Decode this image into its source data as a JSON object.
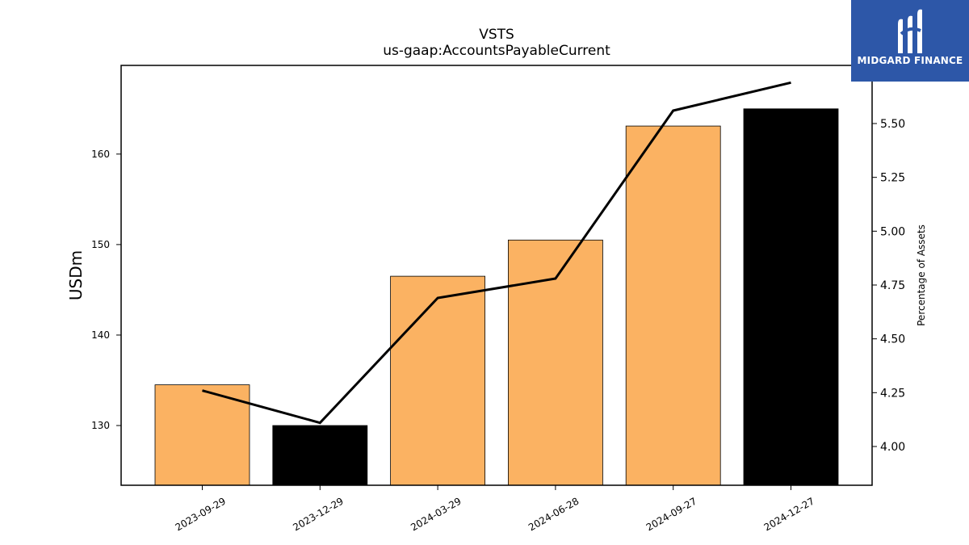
{
  "chart_data": {
    "type": "bar",
    "title": "VSTS",
    "subtitle": "us-gaap:AccountsPayableCurrent",
    "ylabel": "USDm",
    "y2label": "Percentage of Assets",
    "categories": [
      "2023-09-29",
      "2023-12-29",
      "2024-03-29",
      "2024-06-28",
      "2024-09-27",
      "2024-12-27"
    ],
    "series": [
      {
        "values": [
          134.5,
          130.0,
          146.5,
          150.5,
          163.1,
          165.0
        ],
        "colors": [
          "#fbb262",
          "#000000",
          "#fbb262",
          "#fbb262",
          "#fbb262",
          "#000000"
        ]
      },
      {
        "values": [
          4.26,
          4.11,
          4.69,
          4.78,
          5.56,
          5.69
        ],
        "axis": "right",
        "color": "#000000"
      }
    ],
    "ylim": [
      123.4,
      169.8
    ],
    "y2lim": [
      3.82,
      5.77
    ],
    "yticks": [
      130,
      140,
      150,
      160
    ],
    "y2ticks": [
      4.0,
      4.25,
      4.5,
      4.75,
      5.0,
      5.25,
      5.5
    ],
    "grid": false
  },
  "logo": {
    "text": "MIDGARD FINANCE"
  }
}
